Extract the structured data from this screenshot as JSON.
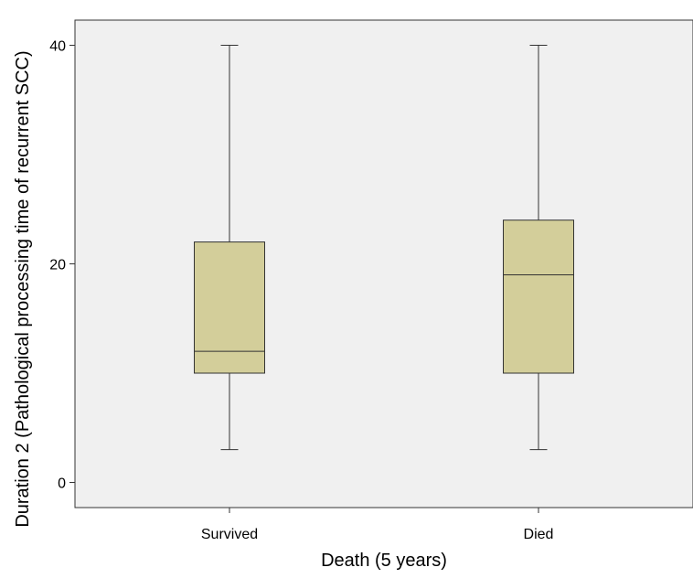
{
  "chart_data": {
    "type": "box",
    "title": "",
    "xlabel": "Death (5 years)",
    "ylabel": "Duration 2 (Pathological processing time of recurrent SCC)",
    "categories": [
      "Survived",
      "Died"
    ],
    "boxes": [
      {
        "category": "Survived",
        "min": 3,
        "q1": 10,
        "median": 12,
        "q3": 22,
        "max": 40
      },
      {
        "category": "Died",
        "min": 3,
        "q1": 10,
        "median": 19,
        "q3": 24,
        "max": 40
      }
    ],
    "yticks": [
      0,
      20,
      40
    ],
    "ylim": [
      -2.3,
      42.3
    ],
    "grid": false,
    "colors": {
      "plot_background": "#f0f0f0",
      "box_fill": "#d3ce9a",
      "line": "#333333"
    }
  }
}
